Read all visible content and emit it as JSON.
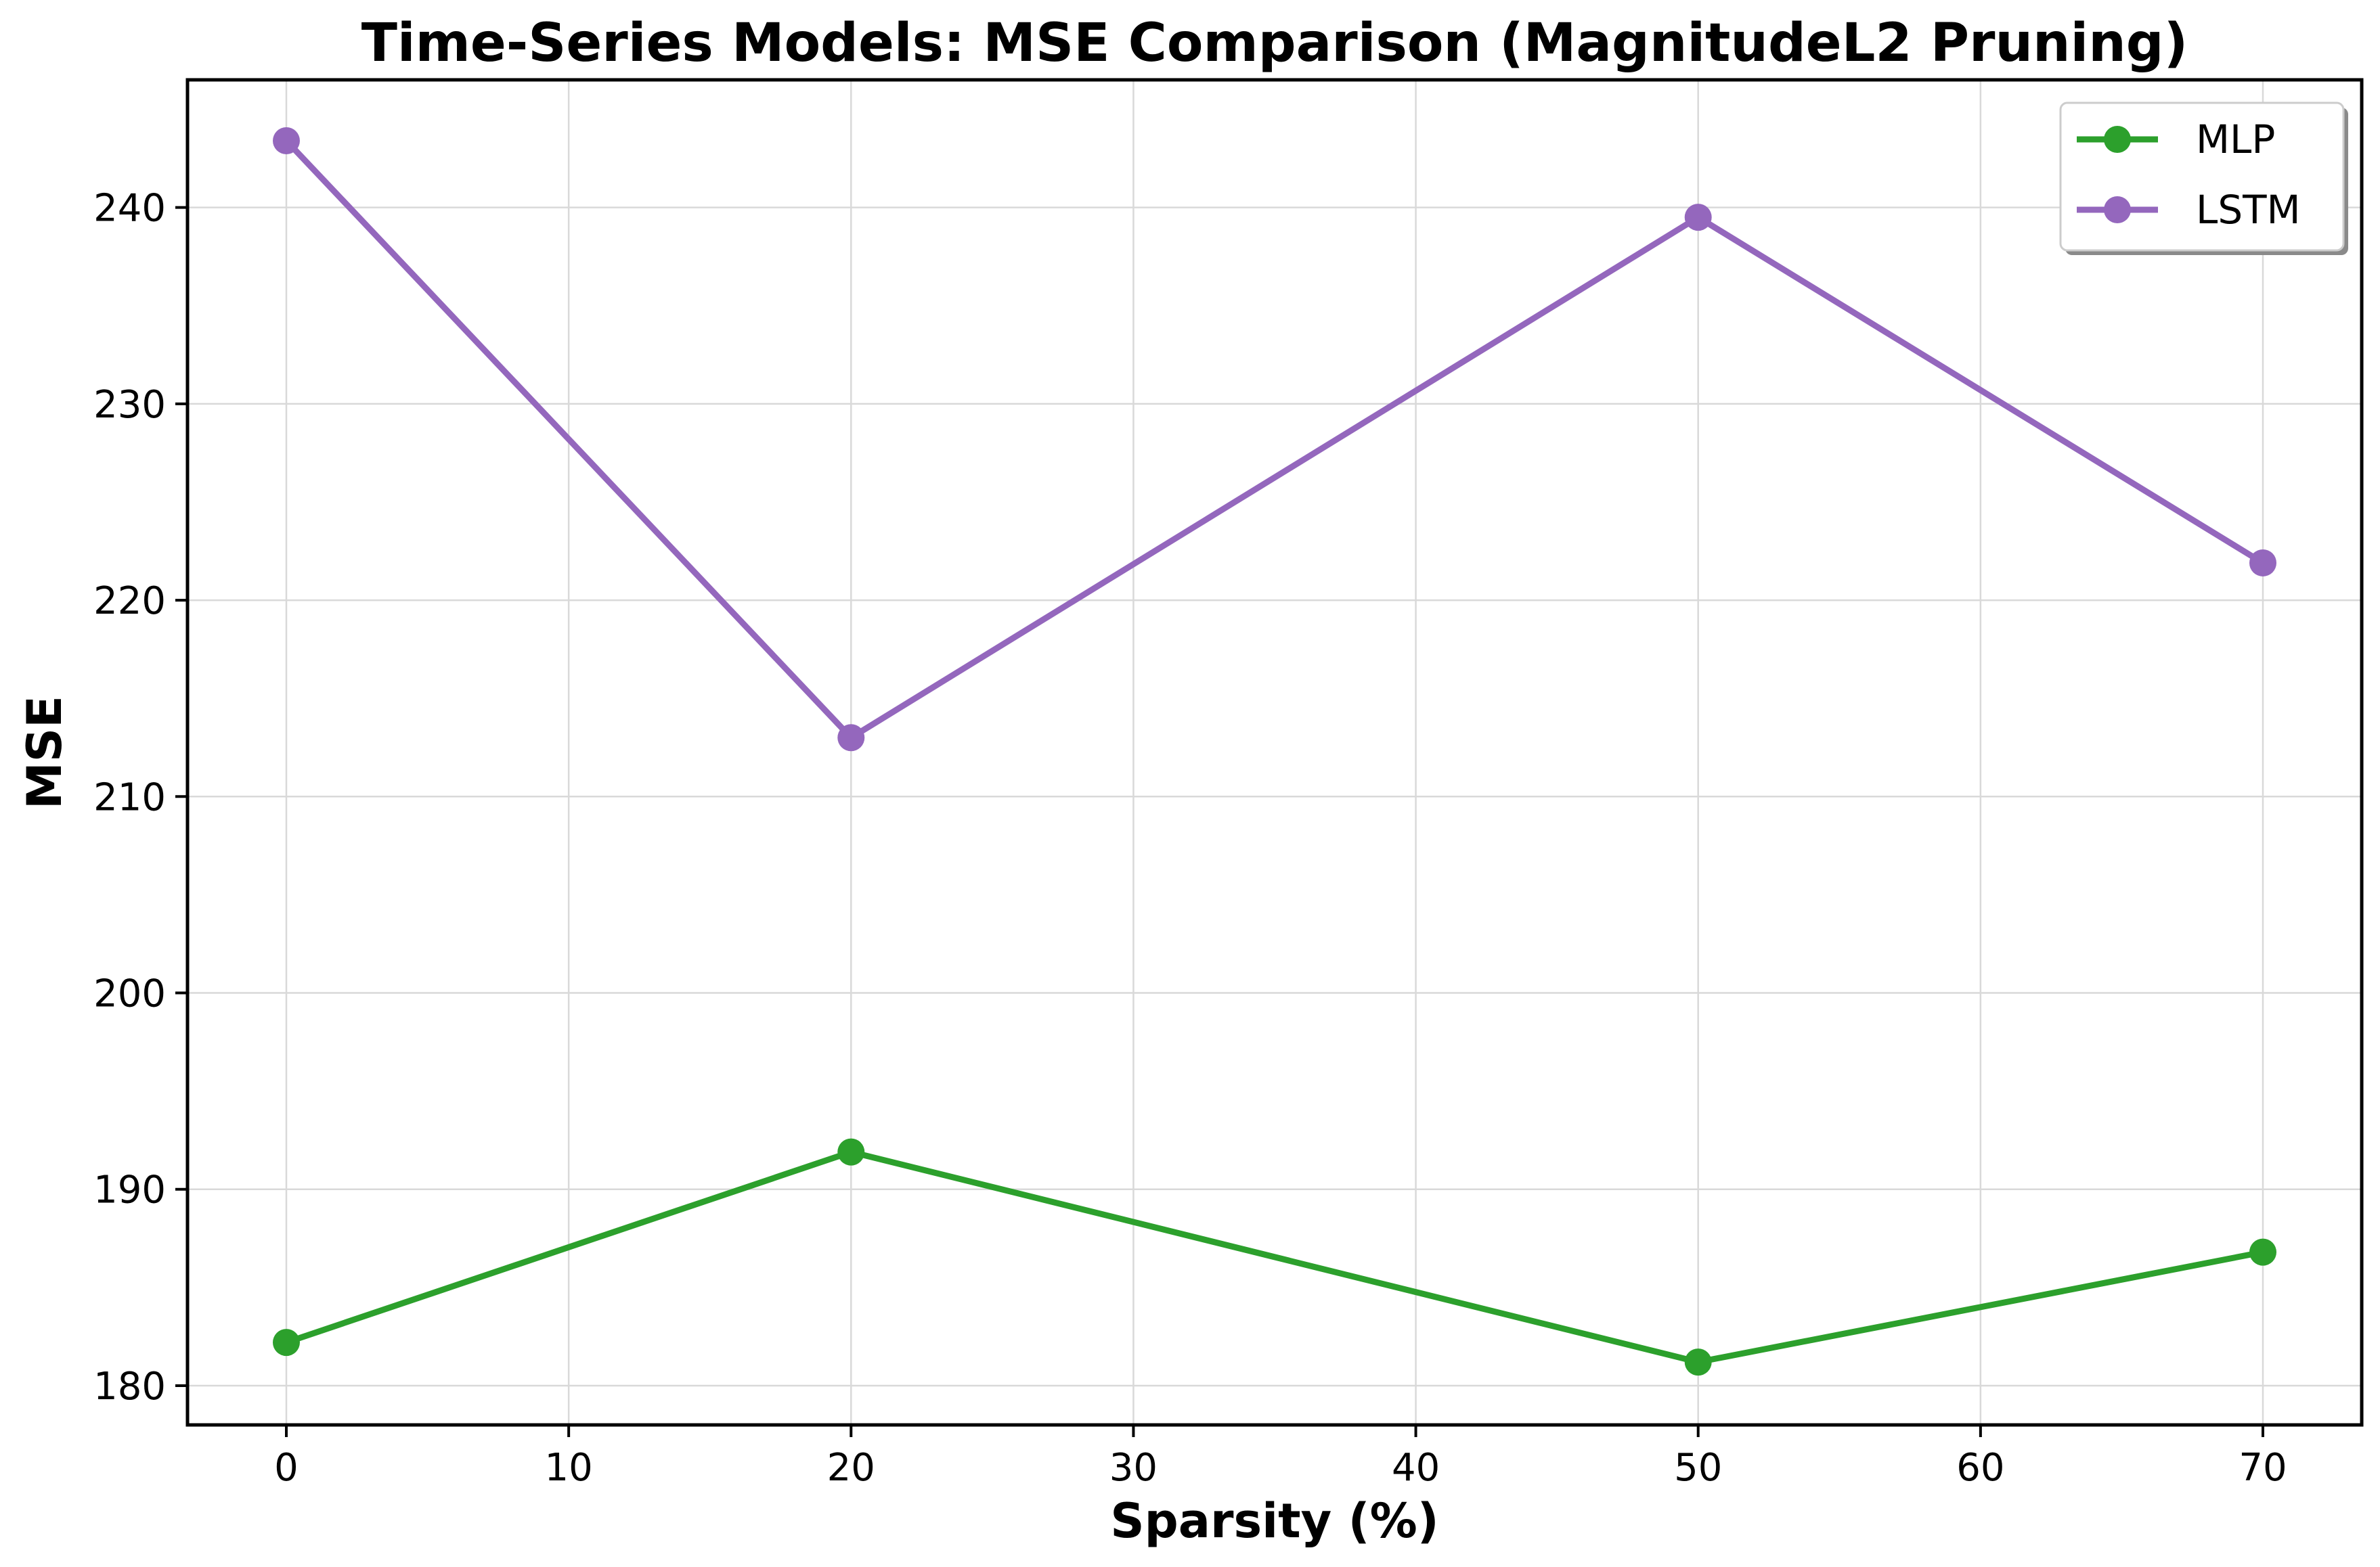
{
  "chart_data": {
    "type": "line",
    "title": "Time-Series Models: MSE Comparison (MagnitudeL2 Pruning)",
    "xlabel": "Sparsity (%)",
    "ylabel": "MSE",
    "x": [
      0,
      20,
      50,
      70
    ],
    "series": [
      {
        "name": "MLP",
        "color": "#2ca02c",
        "values": [
          182.2,
          191.9,
          181.2,
          186.8
        ]
      },
      {
        "name": "LSTM",
        "color": "#9467bd",
        "values": [
          243.4,
          213.0,
          239.5,
          221.9
        ]
      }
    ],
    "xlim": [
      -3.5,
      73.5
    ],
    "ylim": [
      178.0,
      246.5
    ],
    "xticks": [
      0,
      10,
      20,
      30,
      40,
      50,
      60,
      70
    ],
    "yticks": [
      180,
      190,
      200,
      210,
      220,
      230,
      240
    ],
    "grid": true,
    "legend": "top-right",
    "legend_entries": [
      "MLP",
      "LSTM"
    ]
  }
}
